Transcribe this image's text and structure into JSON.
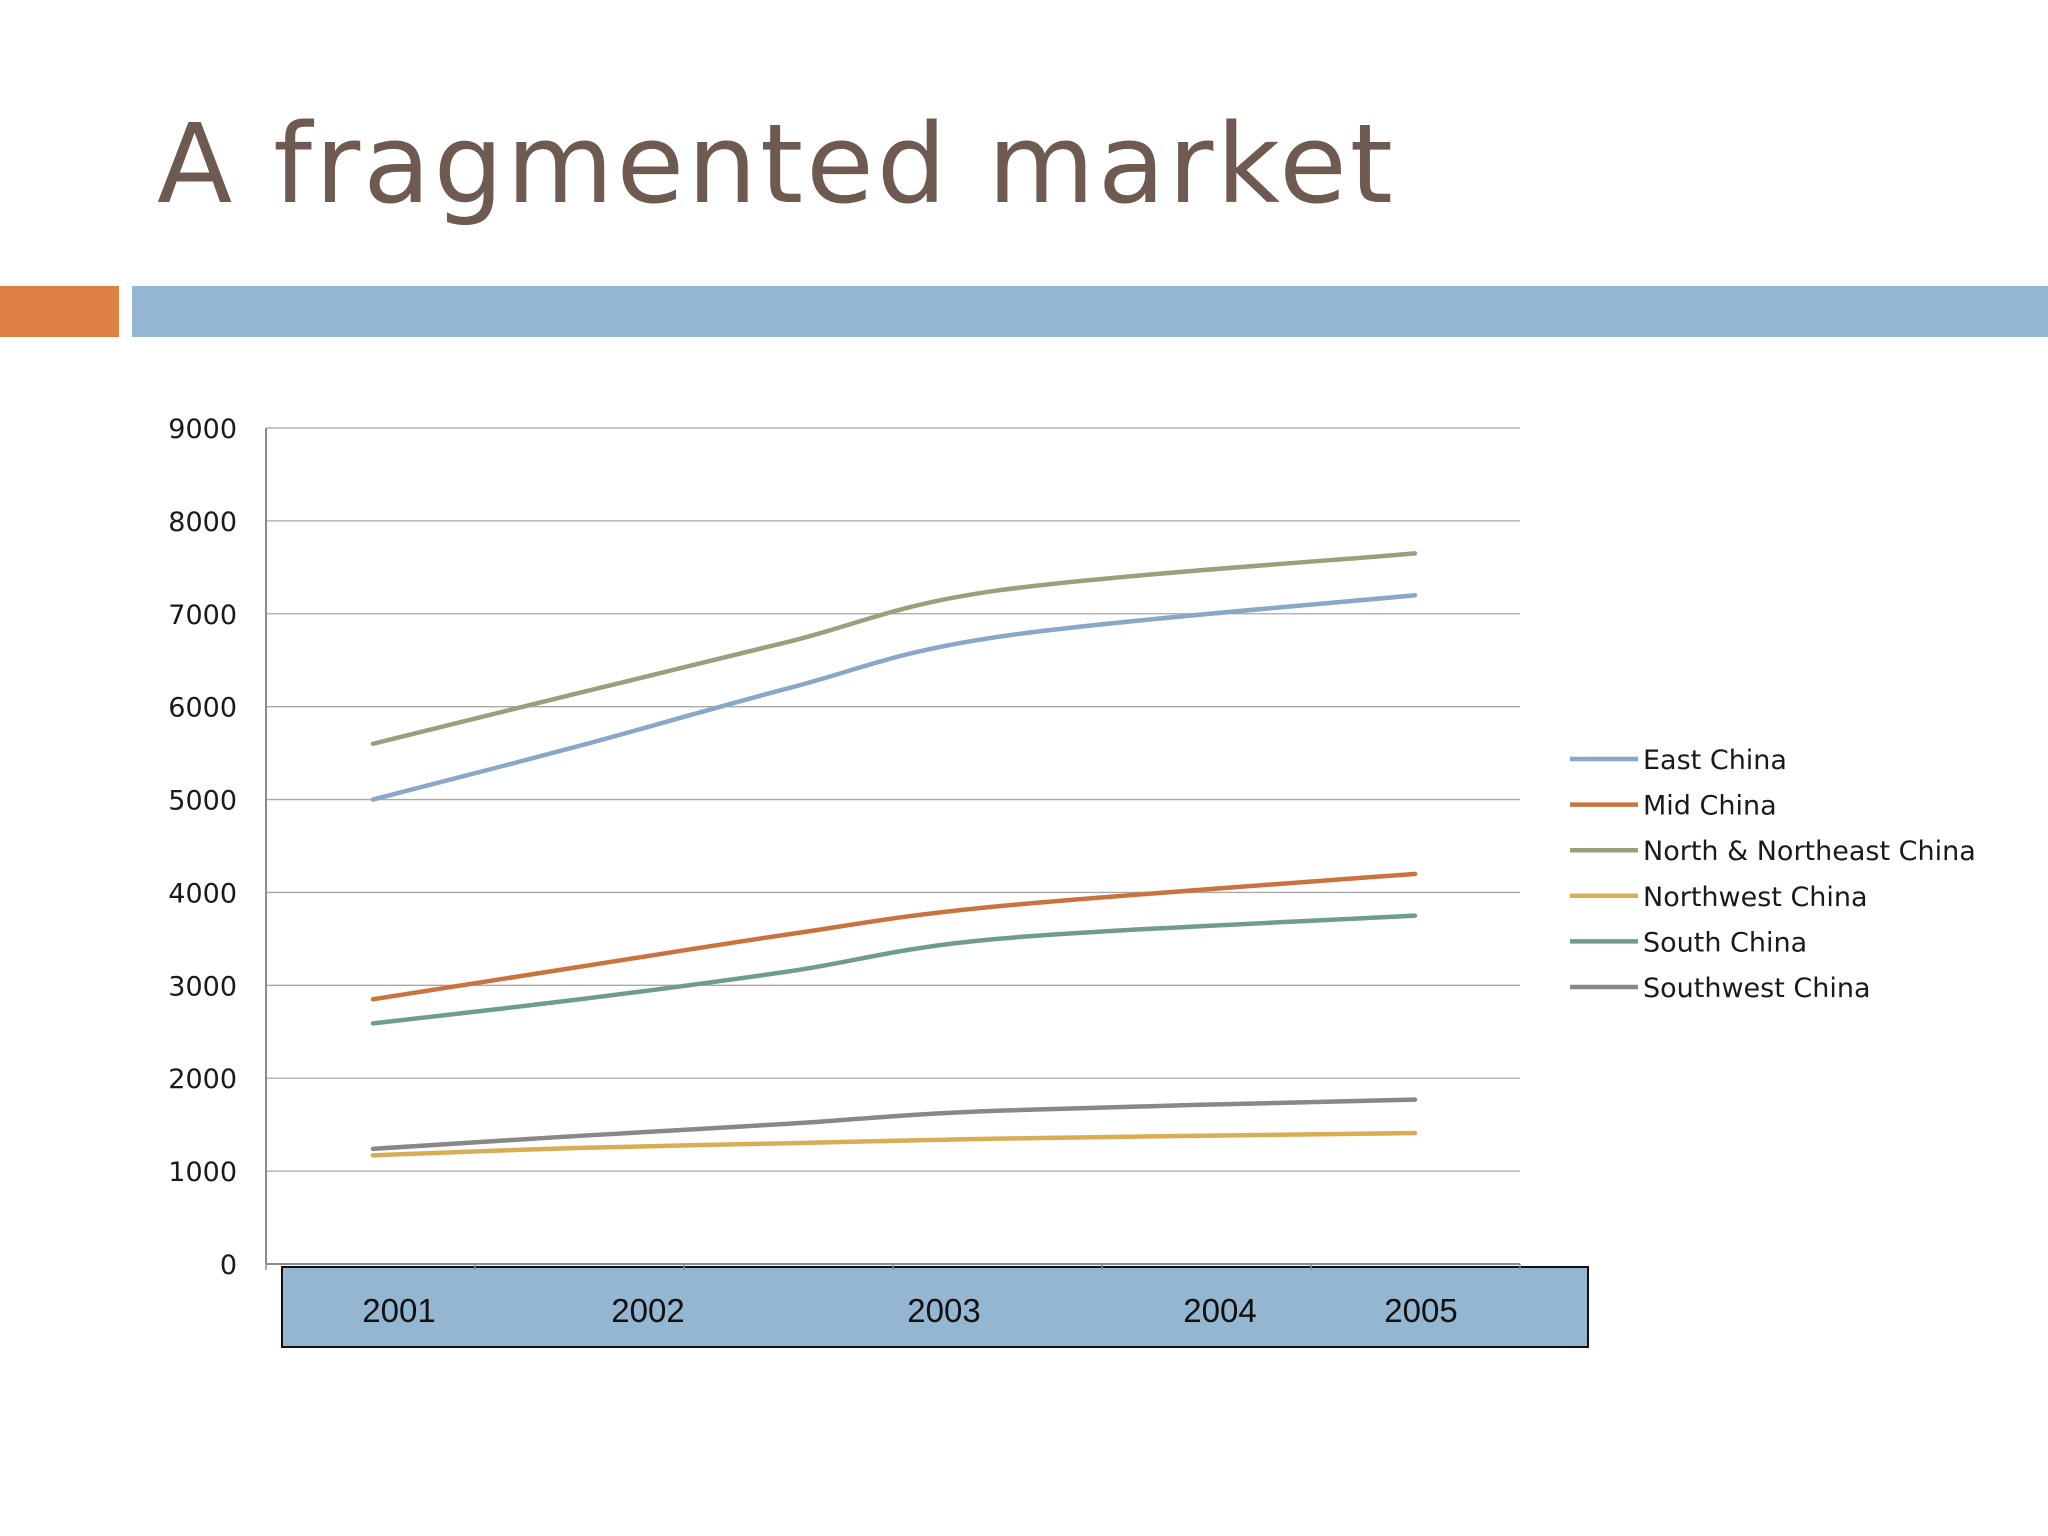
{
  "slide": {
    "title": "A fragmented market"
  },
  "colors": {
    "title": "#6f5a52",
    "accent_orange": "#de8044",
    "accent_blue": "#94b6d0"
  },
  "chart_data": {
    "type": "line",
    "title": "",
    "xlabel": "",
    "ylabel": "",
    "x": [
      "2001",
      "2002",
      "2003",
      "2004",
      "2005"
    ],
    "ylim": [
      0,
      9000
    ],
    "yticks": [
      "0",
      "1000",
      "2000",
      "3000",
      "4000",
      "5000",
      "6000",
      "7000",
      "8000",
      "9000"
    ],
    "grid": true,
    "legend_position": "right",
    "series": [
      {
        "name": "East China",
        "color": "#8aa7c7",
        "values": [
          5000,
          5580,
          6200,
          6750,
          7200
        ]
      },
      {
        "name": "Mid China",
        "color": "#c9743f",
        "values": [
          2850,
          3200,
          3550,
          3850,
          4200
        ]
      },
      {
        "name": "North & Northeast China",
        "color": "#9aa07b",
        "values": [
          5600,
          6150,
          6700,
          7250,
          7650
        ]
      },
      {
        "name": "Northwest China",
        "color": "#d9ad55",
        "values": [
          1170,
          1250,
          1300,
          1350,
          1410
        ]
      },
      {
        "name": "South China",
        "color": "#6e9e8a",
        "values": [
          2590,
          2850,
          3150,
          3500,
          3750
        ]
      },
      {
        "name": "Southwest China",
        "color": "#888888",
        "values": [
          1240,
          1380,
          1510,
          1650,
          1770
        ]
      }
    ]
  }
}
